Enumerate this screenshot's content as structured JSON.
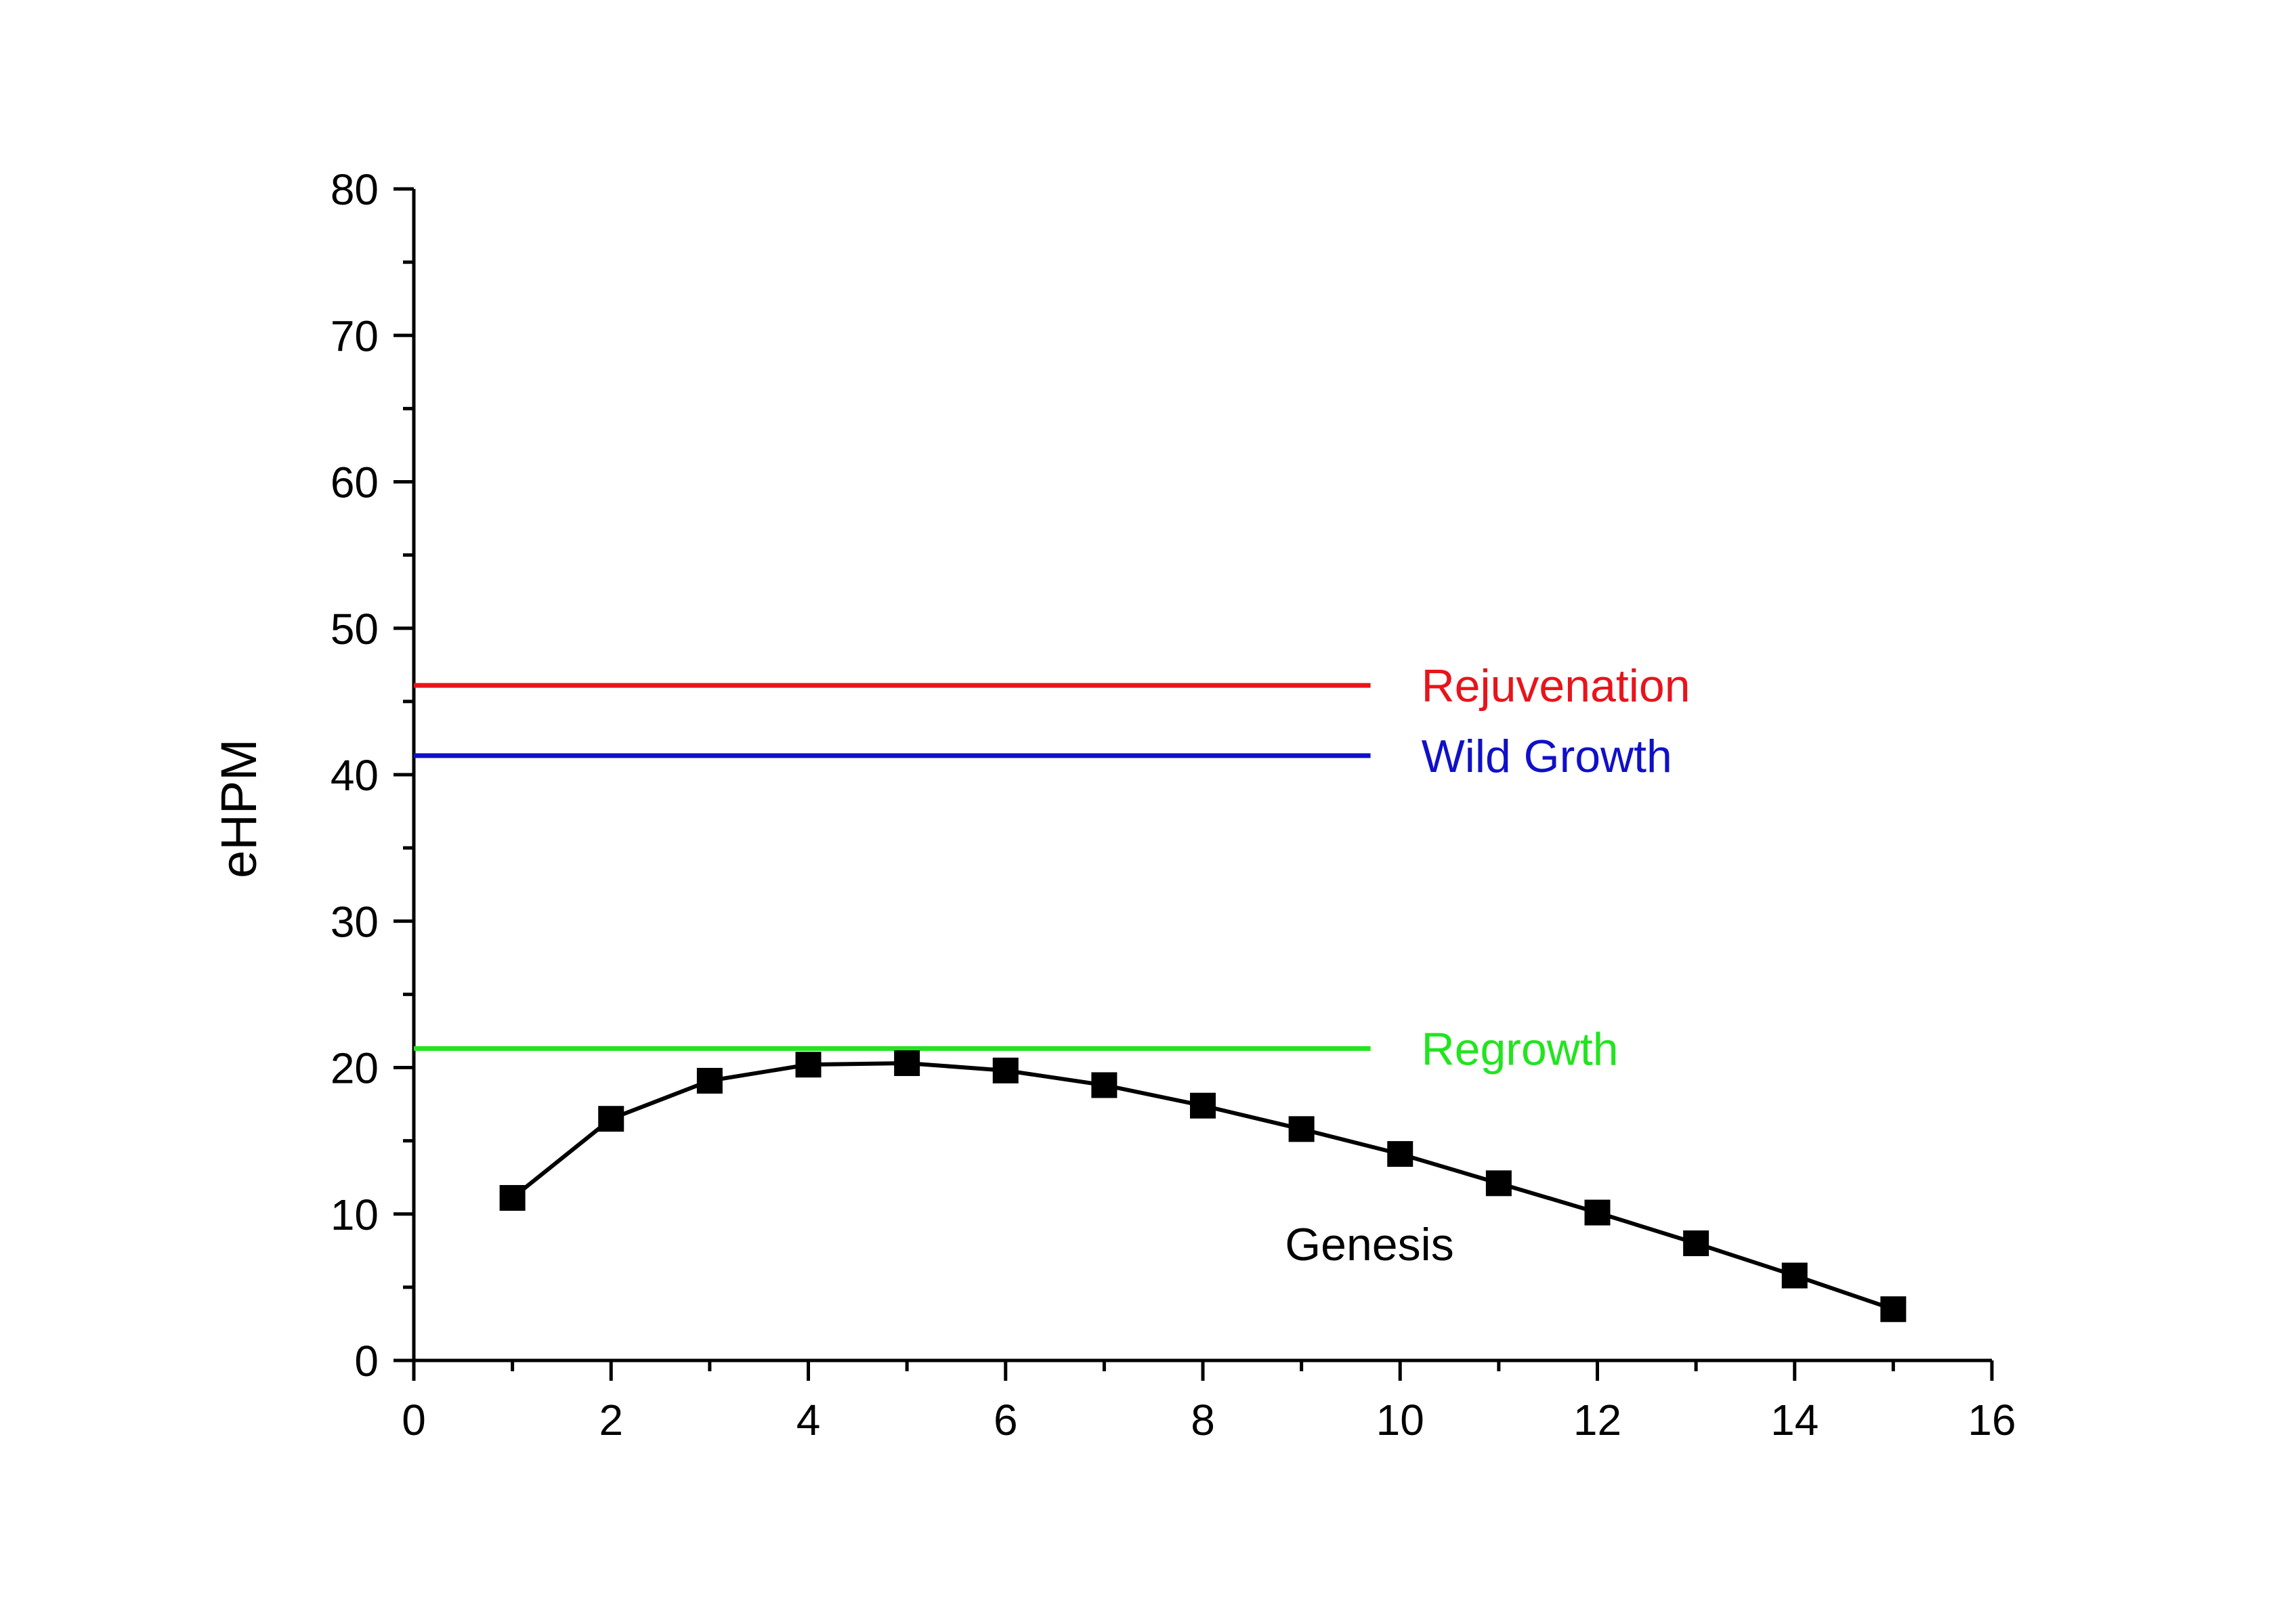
{
  "chart_data": {
    "type": "line",
    "title": "",
    "xlabel": "",
    "ylabel": "eHPM",
    "xlim": [
      0,
      16
    ],
    "ylim": [
      0,
      80
    ],
    "x_ticks": [
      0,
      2,
      4,
      6,
      8,
      10,
      12,
      14,
      16
    ],
    "y_ticks": [
      0,
      10,
      20,
      30,
      40,
      50,
      60,
      70,
      80
    ],
    "grid": false,
    "legend": "none",
    "series": [
      {
        "name": "Genesis",
        "color": "#000000",
        "marker": "square",
        "x": [
          1,
          2,
          3,
          4,
          5,
          6,
          7,
          8,
          9,
          10,
          11,
          12,
          13,
          14,
          15
        ],
        "y": [
          11.1,
          16.5,
          19.1,
          20.2,
          20.3,
          19.8,
          18.8,
          17.4,
          15.8,
          14.1,
          12.1,
          10.1,
          8.0,
          5.8,
          3.5
        ]
      }
    ],
    "reference_lines": [
      {
        "name": "Rejuvenation",
        "y": 46.1,
        "x_range": [
          0,
          9.7
        ],
        "color": "#e8141b"
      },
      {
        "name": "Wild Growth",
        "y": 41.3,
        "x_range": [
          0,
          9.7
        ],
        "color": "#1010c8"
      },
      {
        "name": "Regrowth",
        "y": 21.3,
        "x_range": [
          0,
          9.7
        ],
        "color": "#22e41f"
      }
    ]
  }
}
